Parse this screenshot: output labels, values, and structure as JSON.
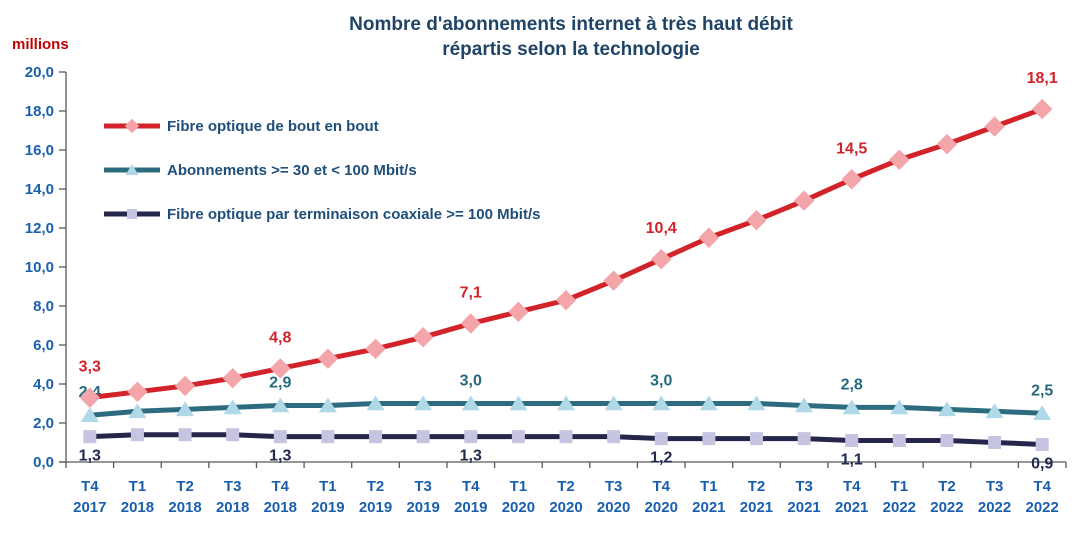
{
  "header": {
    "title_line1": "Nombre d'abonnements internet à très haut débit",
    "title_line2": "répartis selon la technologie",
    "unit_label": "millions"
  },
  "colors": {
    "title_text": "#1F4467",
    "legend_text": "#1F4E79",
    "axis_tick_text": "#1A5FAD",
    "axis_line": "#595959",
    "unit_label_text": "#C00000"
  },
  "chart_data": {
    "type": "line",
    "title": "Nombre d'abonnements internet à très haut débit répartis selon la technologie",
    "ylabel": "millions",
    "xlabel": "",
    "ylim": [
      0,
      20
    ],
    "grid": false,
    "legend_position": "inside-top-left",
    "y_tick_labels": [
      "0,0",
      "2,0",
      "4,0",
      "6,0",
      "8,0",
      "10,0",
      "12,0",
      "14,0",
      "16,0",
      "18,0",
      "20,0"
    ],
    "categories": [
      "T4 2017",
      "T1 2018",
      "T2 2018",
      "T3 2018",
      "T4 2018",
      "T1 2019",
      "T2 2019",
      "T3 2019",
      "T4 2019",
      "T1 2020",
      "T2 2020",
      "T3 2020",
      "T4 2020",
      "T1 2021",
      "T2 2021",
      "T3 2021",
      "T4 2021",
      "T1 2022",
      "T2 2022",
      "T3 2022",
      "T4 2022"
    ],
    "series": [
      {
        "name": "Fibre optique de bout en bout",
        "marker": "diamond",
        "color": "#D2232A",
        "marker_fill": "#F3A5A9",
        "label_color": "#D2232A",
        "label_side": "above",
        "values": [
          3.3,
          3.6,
          3.9,
          4.3,
          4.8,
          5.3,
          5.8,
          6.4,
          7.1,
          7.7,
          8.3,
          9.3,
          10.4,
          11.5,
          12.4,
          13.4,
          14.5,
          15.5,
          16.3,
          17.2,
          18.1
        ],
        "point_labels": {
          "0": "3,3",
          "4": "4,8",
          "8": "7,1",
          "12": "10,4",
          "16": "14,5",
          "20": "18,1"
        }
      },
      {
        "name": "Abonnements >= 30 et < 100 Mbit/s",
        "marker": "triangle",
        "color": "#2C6C7E",
        "marker_fill": "#AFD8E8",
        "label_color": "#26697E",
        "label_side": "above",
        "values": [
          2.4,
          2.6,
          2.7,
          2.8,
          2.9,
          2.9,
          3.0,
          3.0,
          3.0,
          3.0,
          3.0,
          3.0,
          3.0,
          3.0,
          3.0,
          2.9,
          2.8,
          2.8,
          2.7,
          2.6,
          2.5
        ],
        "point_labels": {
          "0": "2,4",
          "4": "2,9",
          "8": "3,0",
          "12": "3,0",
          "16": "2,8",
          "20": "2,5"
        }
      },
      {
        "name": "Fibre optique par terminaison coaxiale >= 100 Mbit/s",
        "marker": "square",
        "color": "#26264C",
        "marker_fill": "#C7C4E1",
        "label_color": "#232A50",
        "label_side": "below",
        "values": [
          1.3,
          1.4,
          1.4,
          1.4,
          1.3,
          1.3,
          1.3,
          1.3,
          1.3,
          1.3,
          1.3,
          1.3,
          1.2,
          1.2,
          1.2,
          1.2,
          1.1,
          1.1,
          1.1,
          1.0,
          0.9
        ],
        "point_labels": {
          "0": "1,3",
          "4": "1,3",
          "8": "1,3",
          "12": "1,2",
          "16": "1,1",
          "20": "0,9"
        }
      }
    ]
  }
}
